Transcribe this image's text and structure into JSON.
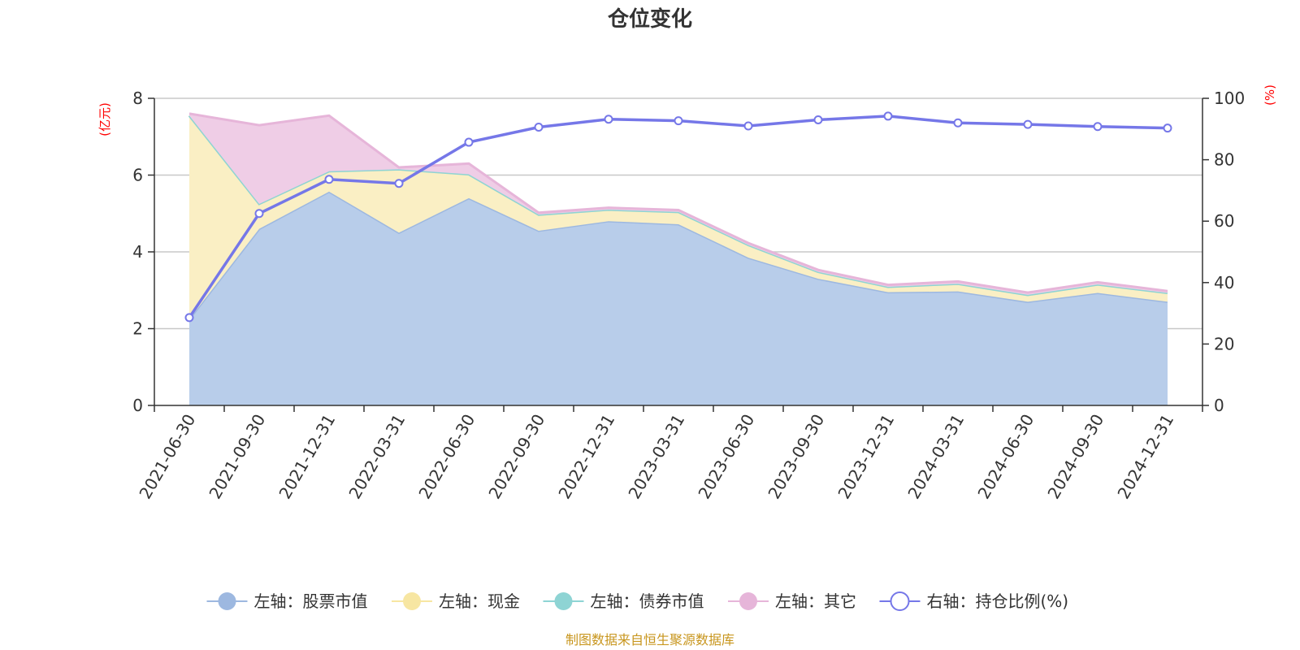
{
  "chart_data": {
    "type": "area",
    "title": "仓位变化",
    "left_axis_unit": "(亿元)",
    "right_axis_unit": "(%)",
    "left_ylim": [
      0,
      8
    ],
    "left_ticks": [
      "0",
      "2",
      "4",
      "6",
      "8"
    ],
    "right_ylim": [
      0,
      100
    ],
    "right_ticks": [
      "0",
      "20",
      "40",
      "60",
      "80",
      "100"
    ],
    "categories": [
      "2021-06-30",
      "2021-09-30",
      "2021-12-31",
      "2022-03-31",
      "2022-06-30",
      "2022-09-30",
      "2022-12-31",
      "2023-03-31",
      "2023-06-30",
      "2023-09-30",
      "2023-12-31",
      "2024-03-31",
      "2024-06-30",
      "2024-09-30",
      "2024-12-31"
    ],
    "stacked_series": [
      {
        "name": "左轴：股票市值",
        "axis": "left",
        "color": "#9db8e0",
        "fill": "#b8cdea",
        "values": [
          2.25,
          4.6,
          5.57,
          4.5,
          5.4,
          4.55,
          4.8,
          4.72,
          3.85,
          3.3,
          2.95,
          2.97,
          2.7,
          2.93,
          2.7
        ]
      },
      {
        "name": "左轴：现金",
        "axis": "left",
        "color": "#f7e6a2",
        "fill": "#faefc4",
        "values": [
          5.3,
          0.65,
          0.53,
          1.65,
          0.62,
          0.42,
          0.3,
          0.32,
          0.33,
          0.18,
          0.14,
          0.2,
          0.18,
          0.22,
          0.23
        ]
      },
      {
        "name": "左轴：债券市值",
        "axis": "left",
        "color": "#8ed4d4",
        "fill": "#b5e3e3",
        "values": [
          0,
          0,
          0,
          0,
          0,
          0,
          0,
          0,
          0,
          0,
          0,
          0,
          0,
          0,
          0
        ]
      },
      {
        "name": "左轴：其它",
        "axis": "left",
        "color": "#e6b5d9",
        "fill": "#efcde6",
        "values": [
          0.05,
          2.05,
          1.45,
          0.05,
          0.28,
          0.05,
          0.05,
          0.05,
          0.05,
          0.05,
          0.05,
          0.06,
          0.06,
          0.06,
          0.05
        ]
      }
    ],
    "line_series": {
      "name": "右轴：持仓比例(%)",
      "axis": "right",
      "color": "#7577e8",
      "values": [
        28.6,
        62.5,
        73.6,
        72.3,
        85.7,
        90.6,
        93.2,
        92.7,
        91.0,
        93.0,
        94.2,
        92.0,
        91.5,
        90.8,
        90.3
      ]
    },
    "source_note": "制图数据来自恒生聚源数据库"
  }
}
